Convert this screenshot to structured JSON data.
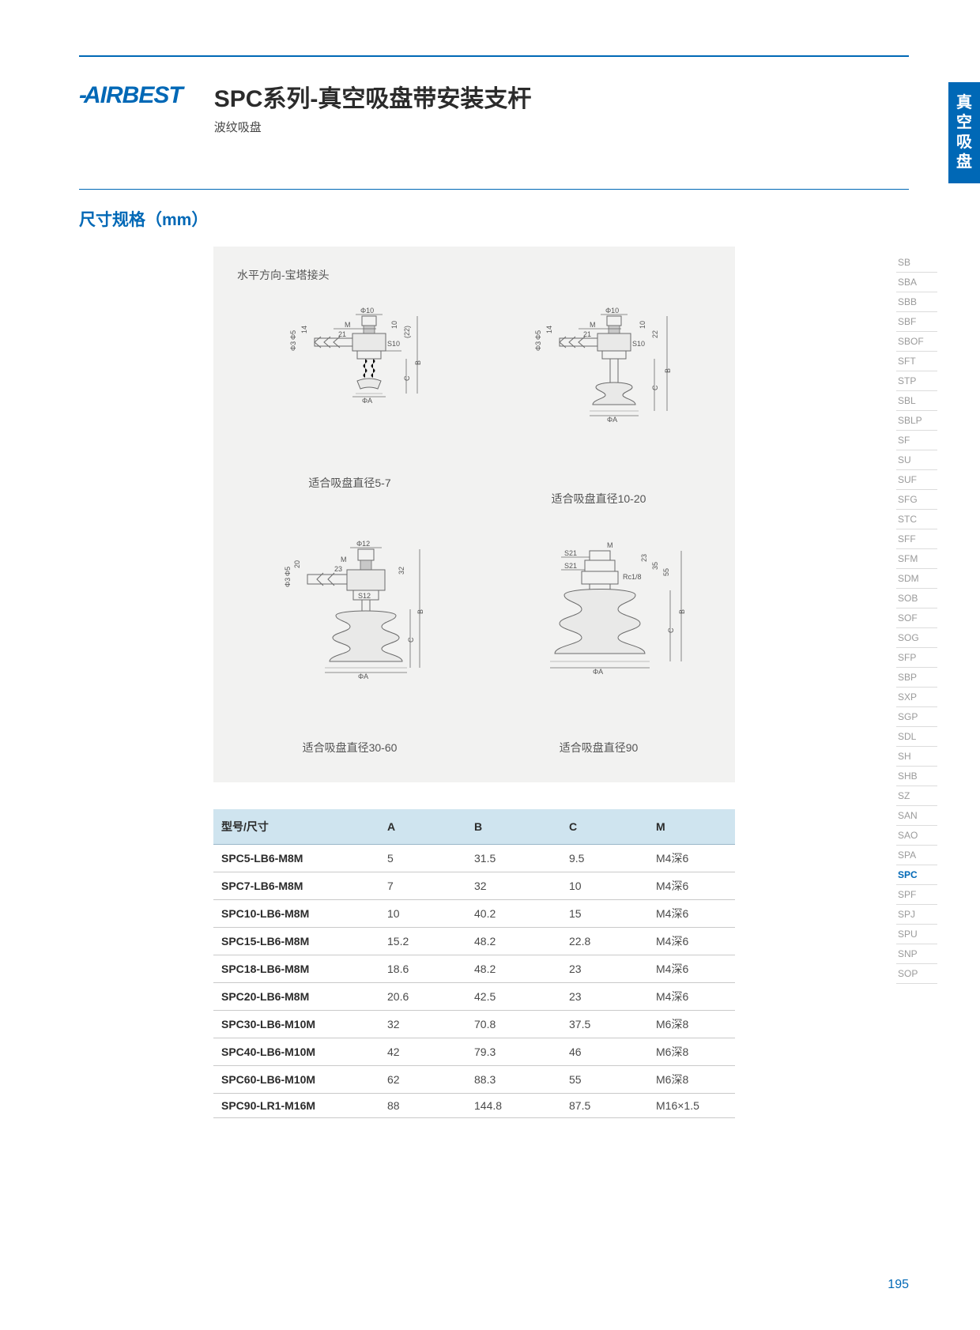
{
  "logo": "AIRBEST",
  "title": "SPC系列-真空吸盘带安装支杆",
  "subtitle": "波纹吸盘",
  "section_title": "尺寸规格（mm）",
  "diagram_lead": "水平方向-宝塔接头",
  "side_tab": [
    "真",
    "空",
    "吸",
    "盘"
  ],
  "page_number": "195",
  "diagrams": {
    "captions": [
      "适合吸盘直径5-7",
      "适合吸盘直径10-20",
      "适合吸盘直径30-60",
      "适合吸盘直径90"
    ],
    "d1": {
      "top_dia": "Φ10",
      "M": "M",
      "len": "21",
      "height": "14",
      "d5": "Φ5",
      "d3": "Φ3",
      "S10": "S10",
      "v10": "10",
      "v22": "(22)",
      "B": "B",
      "C": "C",
      "phiA": "ΦA"
    },
    "d2": {
      "top_dia": "Φ10",
      "M": "M",
      "len": "21",
      "height": "14",
      "d5": "Φ5",
      "d3": "Φ3",
      "S10": "S10",
      "v10": "10",
      "v22": "22",
      "B": "B",
      "C": "C",
      "phiA": "ΦA"
    },
    "d3": {
      "top_dia": "Φ12",
      "M": "M",
      "len": "23",
      "height": "20",
      "d5": "Φ5",
      "d3": "Φ3",
      "S12": "S12",
      "v32": "32",
      "B": "B",
      "C": "C",
      "phiA": "ΦA"
    },
    "d4": {
      "M": "M",
      "S21a": "S21",
      "S21b": "S21",
      "v23": "23",
      "v35": "35",
      "v55": "55",
      "Rc": "Rc1/8",
      "B": "B",
      "C": "C",
      "phiA": "ΦA"
    }
  },
  "table": {
    "columns": [
      "型号/尺寸",
      "A",
      "B",
      "C",
      "M"
    ],
    "rows": [
      [
        "SPC5-LB6-M8M",
        "5",
        "31.5",
        "9.5",
        "M4深6"
      ],
      [
        "SPC7-LB6-M8M",
        "7",
        "32",
        "10",
        "M4深6"
      ],
      [
        "SPC10-LB6-M8M",
        "10",
        "40.2",
        "15",
        "M4深6"
      ],
      [
        "SPC15-LB6-M8M",
        "15.2",
        "48.2",
        "22.8",
        "M4深6"
      ],
      [
        "SPC18-LB6-M8M",
        "18.6",
        "48.2",
        "23",
        "M4深6"
      ],
      [
        "SPC20-LB6-M8M",
        "20.6",
        "42.5",
        "23",
        "M4深6"
      ],
      [
        "SPC30-LB6-M10M",
        "32",
        "70.8",
        "37.5",
        "M6深8"
      ],
      [
        "SPC40-LB6-M10M",
        "42",
        "79.3",
        "46",
        "M6深8"
      ],
      [
        "SPC60-LB6-M10M",
        "62",
        "88.3",
        "55",
        "M6深8"
      ],
      [
        "SPC90-LR1-M16M",
        "88",
        "144.8",
        "87.5",
        "M16×1.5"
      ]
    ],
    "header_bg": "#cfe4ef",
    "row_border": "#c9c9c9"
  },
  "side_nav": {
    "items": [
      "SB",
      "SBA",
      "SBB",
      "SBF",
      "SBOF",
      "SFT",
      "STP",
      "SBL",
      "SBLP",
      "SF",
      "SU",
      "SUF",
      "SFG",
      "STC",
      "SFF",
      "SFM",
      "SDM",
      "SOB",
      "SOF",
      "SOG",
      "SFP",
      "SBP",
      "SXP",
      "SGP",
      "SDL",
      "SH",
      "SHB",
      "SZ",
      "SAN",
      "SAO",
      "SPA",
      "SPC",
      "SPF",
      "SPJ",
      "SPU",
      "SNP",
      "SOP"
    ],
    "active": "SPC"
  },
  "colors": {
    "brand": "#0068b6",
    "diagram_bg": "#f2f2f1",
    "text": "#3a3a3a",
    "muted": "#9a9a9a"
  }
}
